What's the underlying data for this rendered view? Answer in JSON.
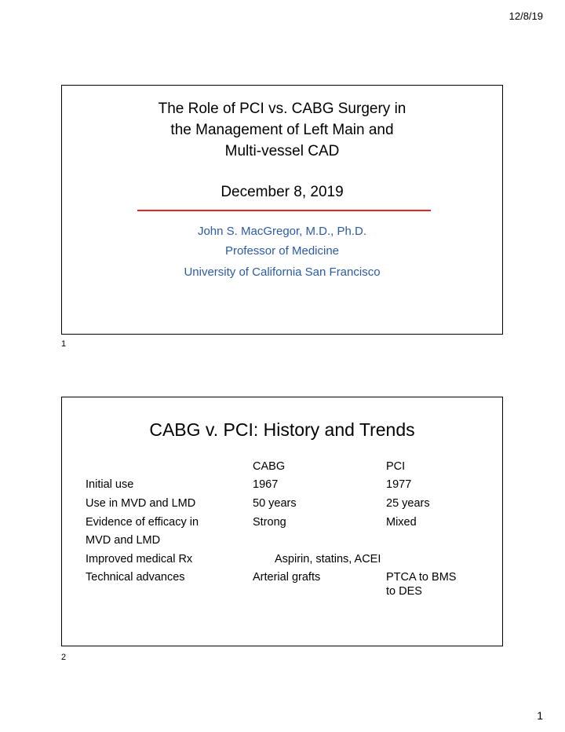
{
  "header": {
    "date": "12/8/19"
  },
  "slide1": {
    "title": "The Role of PCI vs. CABG Surgery in\nthe Management of Left Main and\nMulti-vessel CAD",
    "date": "December 8, 2019",
    "author": "John S. MacGregor, M.D., Ph.D.",
    "position": "Professor of Medicine",
    "affiliation": "University of California San Francisco",
    "number": "1",
    "accent_color": "#e0261f",
    "text_color": "#2c5ba6"
  },
  "slide2": {
    "title": "CABG v. PCI: History and Trends",
    "headers": {
      "cabg": "CABG",
      "pci": "PCI"
    },
    "rows": [
      {
        "label": "Initial use",
        "cabg": "1967",
        "pci": "1977"
      },
      {
        "label": "Use in MVD and LMD",
        "cabg": "50 years",
        "pci": "25  years"
      },
      {
        "label": "Evidence of efficacy in",
        "cabg": "Strong",
        "pci": "Mixed"
      },
      {
        "label": "MVD and LMD",
        "cabg": "",
        "pci": ""
      },
      {
        "label": "Improved medical Rx",
        "shared": "Aspirin, statins, ACEI"
      },
      {
        "label": "Technical advances",
        "cabg": "Arterial grafts",
        "pci": "PTCA to BMS"
      },
      {
        "label": "",
        "cabg": "",
        "pci": "to DES"
      }
    ],
    "number": "2"
  },
  "footer": {
    "page_number": "1"
  }
}
